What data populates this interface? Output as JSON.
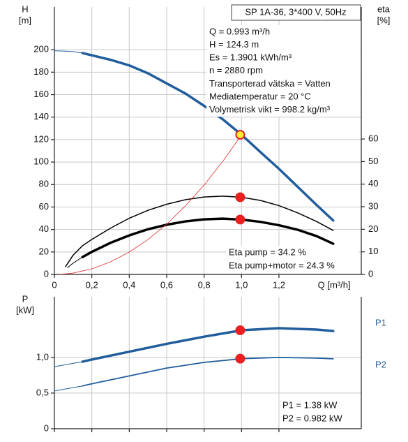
{
  "chart_data": [
    {
      "type": "line",
      "title": "SP 1A-36, 3*400 V, 50Hz",
      "annotations": [
        "Q = 0.993 m³/h",
        "H = 124.3 m",
        "Es = 1.3901 kWh/m³",
        "n = 2880 rpm",
        "Transporterad vätska = Vatten",
        "Mediatemperatur = 20 °C",
        "Volymetrisk vikt = 998.2 kg/m³"
      ],
      "notes": [
        "Eta pump = 34.2 %",
        "Eta pump+motor = 24.3 %"
      ],
      "ylabel": [
        "H",
        "[m]"
      ],
      "y2label": [
        "eta",
        "[%]"
      ],
      "xlabel": "Q [m³/h]",
      "xlim": [
        0,
        1.64
      ],
      "ylim": [
        0,
        238
      ],
      "y2lim": [
        0,
        118.5
      ],
      "xticks": [
        0,
        {
          "value": 0.2,
          "label": "0,2"
        },
        {
          "value": 0.4,
          "label": "0,4"
        },
        {
          "value": 0.6,
          "label": "0,6"
        },
        {
          "value": 0.8,
          "label": "0,8"
        },
        {
          "value": 1.0,
          "label": "1,0"
        },
        {
          "value": 1.2,
          "label": "1,2"
        }
      ],
      "yticks": [
        0,
        20,
        40,
        60,
        80,
        100,
        120,
        140,
        160,
        180,
        200
      ],
      "y2ticks": [
        0,
        10,
        20,
        30,
        40,
        50,
        60
      ],
      "xtick_labels": true,
      "grid": true,
      "series": [
        {
          "color": "#215d9c",
          "width": 1,
          "x": [
            0,
            0.05,
            0.1,
            0.15
          ],
          "values": [
            199,
            198.8,
            198.3,
            197
          ]
        },
        {
          "color": "#215d9c",
          "width": 3.5,
          "x": [
            0.15,
            0.2,
            0.3,
            0.4,
            0.5,
            0.6,
            0.7,
            0.8,
            0.9,
            1.0,
            1.1,
            1.2,
            1.3,
            1.4,
            1.49
          ],
          "values": [
            197,
            195,
            191,
            186,
            179,
            170,
            161,
            150,
            138,
            124.3,
            109,
            94,
            78,
            62,
            48
          ]
        },
        {
          "color": "#000000",
          "width": 1.5,
          "axis": "y2",
          "x": [
            0.06,
            0.1,
            0.15,
            0.2,
            0.3,
            0.4,
            0.5,
            0.6,
            0.7,
            0.8,
            0.9,
            1.0,
            1.1,
            1.2,
            1.3,
            1.4,
            1.49
          ],
          "values": [
            3.5,
            8.5,
            12.7,
            15.5,
            20.5,
            24.9,
            28.4,
            31.1,
            33.1,
            34.3,
            34.7,
            34.2,
            32.8,
            30.5,
            27.3,
            23.5,
            19.5
          ]
        },
        {
          "color": "#000000",
          "width": 1,
          "axis": "y2",
          "x": [
            0.07,
            0.1,
            0.15
          ],
          "values": [
            3,
            5,
            7.7
          ]
        },
        {
          "color": "#000000",
          "width": 3.5,
          "axis": "y2",
          "x": [
            0.15,
            0.2,
            0.3,
            0.4,
            0.5,
            0.6,
            0.7,
            0.8,
            0.9,
            1.0,
            1.1,
            1.2,
            1.3,
            1.4,
            1.49
          ],
          "values": [
            7.7,
            10,
            14,
            17.3,
            20,
            22,
            23.5,
            24.4,
            24.7,
            24.3,
            23.3,
            21.8,
            19.8,
            17,
            13.6
          ]
        },
        {
          "color": "#e03030",
          "width": 0.8,
          "x": [
            0.03,
            0.1,
            0.2,
            0.3,
            0.4,
            0.5,
            0.6,
            0.7,
            0.8,
            0.9,
            1.0
          ],
          "values": [
            0,
            1.2,
            5,
            11.2,
            19.9,
            31,
            44.7,
            61,
            79.5,
            100.6,
            124.3
          ]
        }
      ],
      "points": [
        {
          "x": 0.993,
          "y": 124.3,
          "color": "#ffee33",
          "edge": "#e02020"
        },
        {
          "x": 0.993,
          "y": 34.2,
          "axis": "y2",
          "color": "#e82020",
          "edge": "#e82020"
        },
        {
          "x": 0.993,
          "y": 24.3,
          "axis": "y2",
          "color": "#e82020",
          "edge": "#e82020"
        }
      ]
    },
    {
      "type": "line",
      "annotations": [
        "P1 = 1.38 kW",
        "P2 = 0.982 kW"
      ],
      "ylabel": [
        "P",
        "[kW]"
      ],
      "xlim": [
        0,
        1.64
      ],
      "ylim": [
        0,
        1.85
      ],
      "xticks": [
        0,
        0.2,
        0.4,
        0.6,
        0.8,
        1.0,
        1.2
      ],
      "yticks": [
        0,
        {
          "value": 0.5,
          "label": "0,5"
        },
        {
          "value": 1.0,
          "label": "1,0"
        }
      ],
      "xtick_labels": false,
      "grid": true,
      "series": [
        {
          "color": "#215d9c",
          "width": 1,
          "x": [
            0,
            0.15
          ],
          "values": [
            0.87,
            0.94
          ]
        },
        {
          "name": "P1",
          "color": "#215d9c",
          "width": 3.5,
          "x": [
            0.15,
            0.2,
            0.4,
            0.6,
            0.8,
            1.0,
            1.2,
            1.4,
            1.49
          ],
          "values": [
            0.94,
            0.97,
            1.08,
            1.19,
            1.29,
            1.38,
            1.41,
            1.39,
            1.37
          ]
        },
        {
          "color": "#215d9c",
          "width": 1,
          "x": [
            0,
            0.15
          ],
          "values": [
            0.53,
            0.6
          ]
        },
        {
          "name": "P2",
          "color": "#215d9c",
          "width": 1.8,
          "x": [
            0.15,
            0.2,
            0.4,
            0.6,
            0.8,
            1.0,
            1.2,
            1.4,
            1.49
          ],
          "values": [
            0.6,
            0.63,
            0.74,
            0.85,
            0.93,
            0.982,
            1.0,
            0.99,
            0.98
          ]
        }
      ],
      "points": [
        {
          "x": 0.993,
          "y": 1.38,
          "color": "#e82020",
          "edge": "#e82020"
        },
        {
          "x": 0.993,
          "y": 0.982,
          "color": "#e82020",
          "edge": "#e82020"
        }
      ]
    }
  ]
}
